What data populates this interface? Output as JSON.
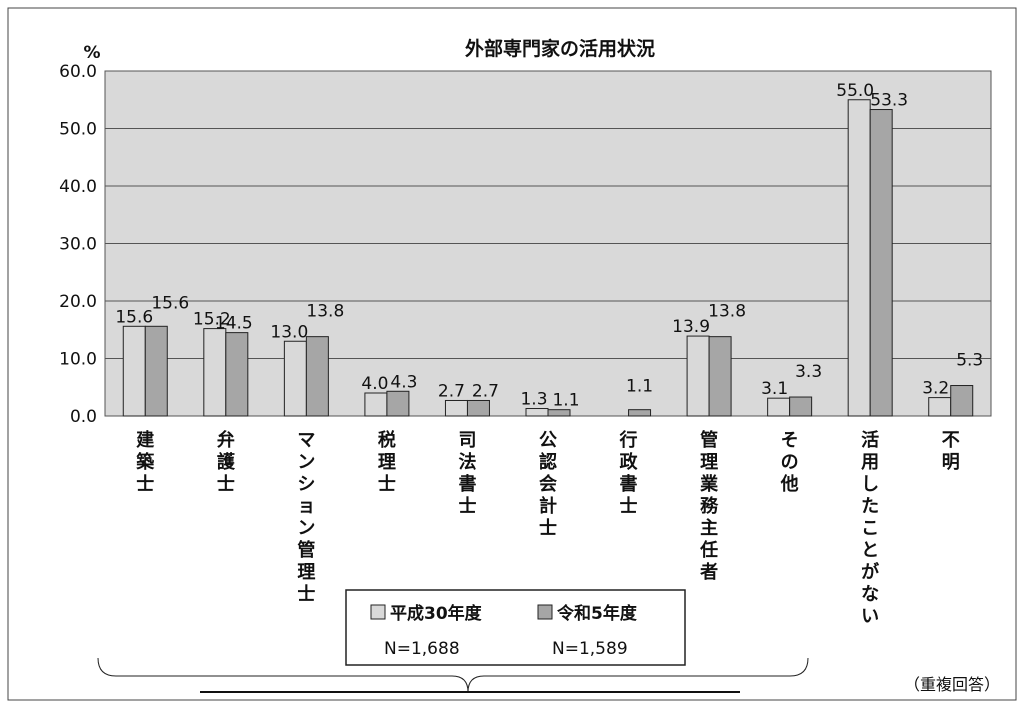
{
  "chart_data": {
    "type": "bar",
    "title": "外部専門家の活用状況",
    "ylabel": "%",
    "ylim": [
      0,
      60
    ],
    "yticks": [
      "0.0",
      "10.0",
      "20.0",
      "30.0",
      "40.0",
      "50.0",
      "60.0"
    ],
    "grid": true,
    "categories": [
      "建築士",
      "弁護士",
      "マンション管理士",
      "税理士",
      "司法書士",
      "公認会計士",
      "行政書士",
      "管理業務主任者",
      "その他",
      "活用したことがない",
      "不明"
    ],
    "series": [
      {
        "name": "平成30年度",
        "n": "N=1,688",
        "color": "#d9d9d9",
        "values": [
          15.6,
          15.2,
          13.0,
          4.0,
          2.7,
          1.3,
          null,
          13.9,
          3.1,
          55.0,
          3.2
        ],
        "labels": [
          "15.6",
          "15.2",
          "13.0",
          "4.0",
          "2.7",
          "1.3",
          "",
          "13.9",
          "3.1",
          "55.0",
          "3.2"
        ]
      },
      {
        "name": "令和5年度",
        "n": "N=1,589",
        "color": "#a6a6a6",
        "values": [
          15.6,
          14.5,
          13.8,
          4.3,
          2.7,
          1.1,
          1.1,
          13.8,
          3.3,
          53.3,
          5.3
        ],
        "labels": [
          "15.6",
          "14.5",
          "13.8",
          "4.3",
          "2.7",
          "1.1",
          "1.1",
          "13.8",
          "3.3",
          "53.3",
          "5.3"
        ]
      }
    ],
    "legend_position": "bottom-center",
    "note": "（重複回答）"
  }
}
